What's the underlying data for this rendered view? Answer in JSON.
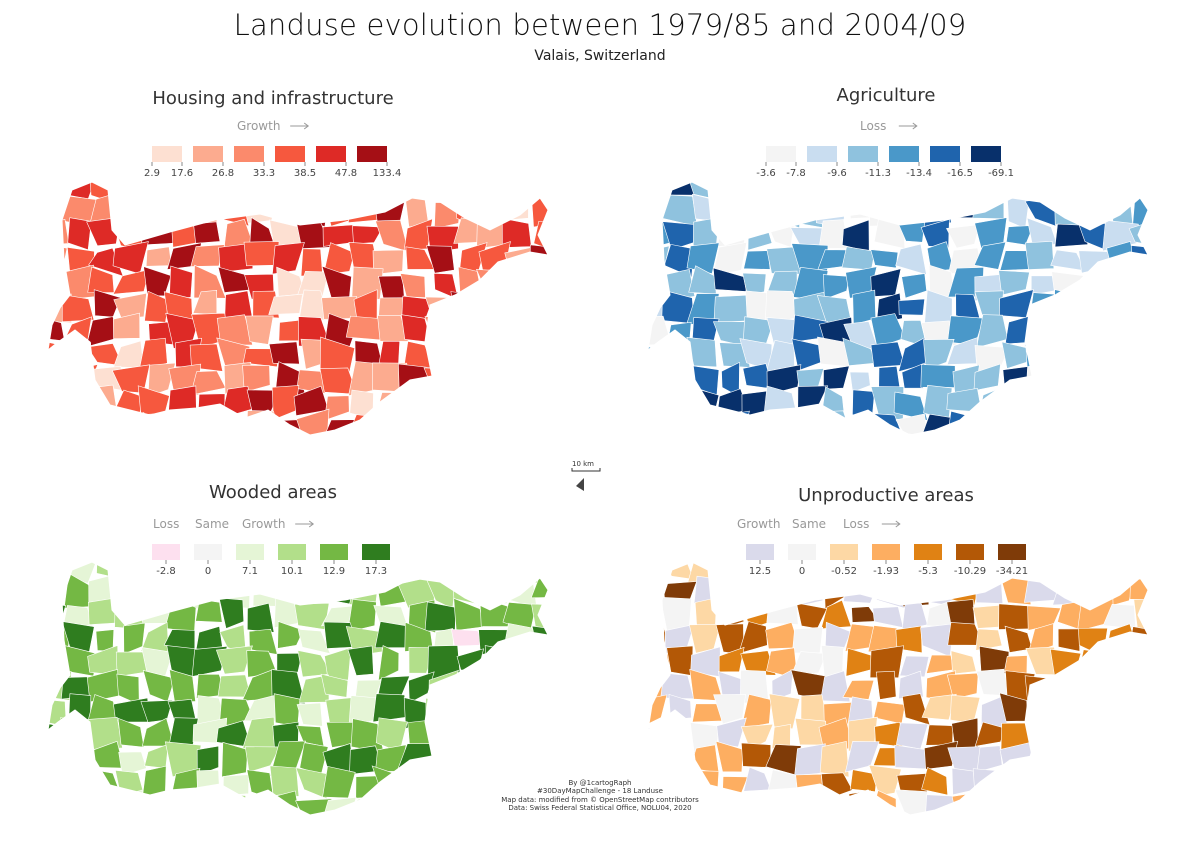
{
  "title": "Landuse evolution between 1979/85 and 2004/09",
  "subtitle": "Valais, Switzerland",
  "scale_label": "10 km",
  "credits": [
    "By @1cartogRaph",
    "#30DayMapChallenge - 18 Landuse",
    "Map data: modified from © OpenStreetMap contributors",
    "Data: Swiss Federal Statistical Office, NOLU04, 2020"
  ],
  "panels": [
    {
      "id": "housing",
      "title": "Housing and infrastructure",
      "legend_headers": [
        {
          "text": "Growth",
          "arrow": true
        }
      ],
      "breaks": [
        "2.9",
        "17.6",
        "26.8",
        "33.3",
        "38.5",
        "47.8",
        "133.4"
      ],
      "colors": [
        "#fde0d2",
        "#fcab8f",
        "#fb8a6c",
        "#f6583e",
        "#de2a26",
        "#a50f15"
      ],
      "legend_swatches_on": [
        0,
        1,
        2,
        3,
        4,
        5
      ]
    },
    {
      "id": "agriculture",
      "title": "Agriculture",
      "legend_headers": [
        {
          "text": "Loss",
          "arrow": true
        }
      ],
      "breaks": [
        "-3.6",
        "-7.8",
        "-9.6",
        "-11.3",
        "-13.4",
        "-16.5",
        "-69.1"
      ],
      "colors": [
        "#f4f4f4",
        "#c9ddf0",
        "#8fc2de",
        "#4a98c9",
        "#1f64ad",
        "#08306b"
      ],
      "legend_swatches_on": [
        0,
        1,
        2,
        3,
        4,
        5
      ]
    },
    {
      "id": "wooded",
      "title": "Wooded areas",
      "legend_headers": [
        {
          "text": "Loss",
          "arrow": false
        },
        {
          "text": "Same",
          "arrow": false
        },
        {
          "text": "Growth",
          "arrow": true
        }
      ],
      "breaks": [
        "-2.8",
        "0",
        "7.1",
        "10.1",
        "12.9",
        "17.3"
      ],
      "colors": [
        "#fde0ef",
        "#f4f4f4",
        "#e5f5d6",
        "#b2df8a",
        "#74b844",
        "#2f7d1f"
      ],
      "legend_swatches_on": [
        0,
        1,
        2,
        3,
        4,
        5
      ]
    },
    {
      "id": "unproductive",
      "title": "Unproductive areas",
      "legend_headers": [
        {
          "text": "Growth",
          "arrow": false
        },
        {
          "text": "Same",
          "arrow": false
        },
        {
          "text": "Loss",
          "arrow": true
        }
      ],
      "breaks": [
        "12.5",
        "0",
        "-0.52",
        "-1.93",
        "-5.3",
        "-10.29",
        "-34.21"
      ],
      "colors": [
        "#dadaeb",
        "#f4f4f4",
        "#fdd8a5",
        "#fdae61",
        "#e08214",
        "#b35806",
        "#7f3b08"
      ],
      "legend_swatches_on": [
        0,
        1,
        2,
        3,
        4,
        5,
        6
      ]
    }
  ]
}
